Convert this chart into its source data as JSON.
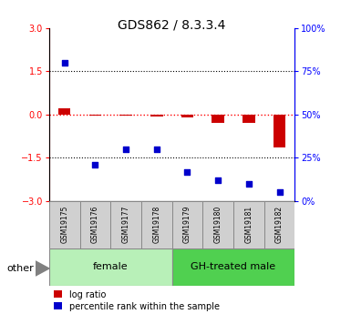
{
  "title": "GDS862 / 8.3.3.4",
  "samples": [
    "GSM19175",
    "GSM19176",
    "GSM19177",
    "GSM19178",
    "GSM19179",
    "GSM19180",
    "GSM19181",
    "GSM19182"
  ],
  "log_ratio": [
    0.22,
    -0.04,
    -0.03,
    -0.07,
    -0.1,
    -0.3,
    -0.28,
    -1.15
  ],
  "percentile_rank_pct": [
    80,
    21,
    30,
    30,
    17,
    12,
    10,
    5
  ],
  "groups": [
    {
      "label": "female",
      "start": 0,
      "end": 3,
      "color": "#b8f0b8"
    },
    {
      "label": "GH-treated male",
      "start": 4,
      "end": 7,
      "color": "#50d050"
    }
  ],
  "ylim_left": [
    -3,
    3
  ],
  "ylim_right": [
    0,
    100
  ],
  "yticks_left": [
    -3,
    -1.5,
    0,
    1.5,
    3
  ],
  "yticks_right": [
    0,
    25,
    50,
    75,
    100
  ],
  "bar_color": "#cc0000",
  "dot_color": "#0000cc",
  "legend_log_ratio": "log ratio",
  "legend_pct": "percentile rank within the sample",
  "other_label": "other",
  "sample_box_color": "#d0d0d0",
  "title_fontsize": 10,
  "tick_fontsize": 7,
  "bar_width": 0.4
}
